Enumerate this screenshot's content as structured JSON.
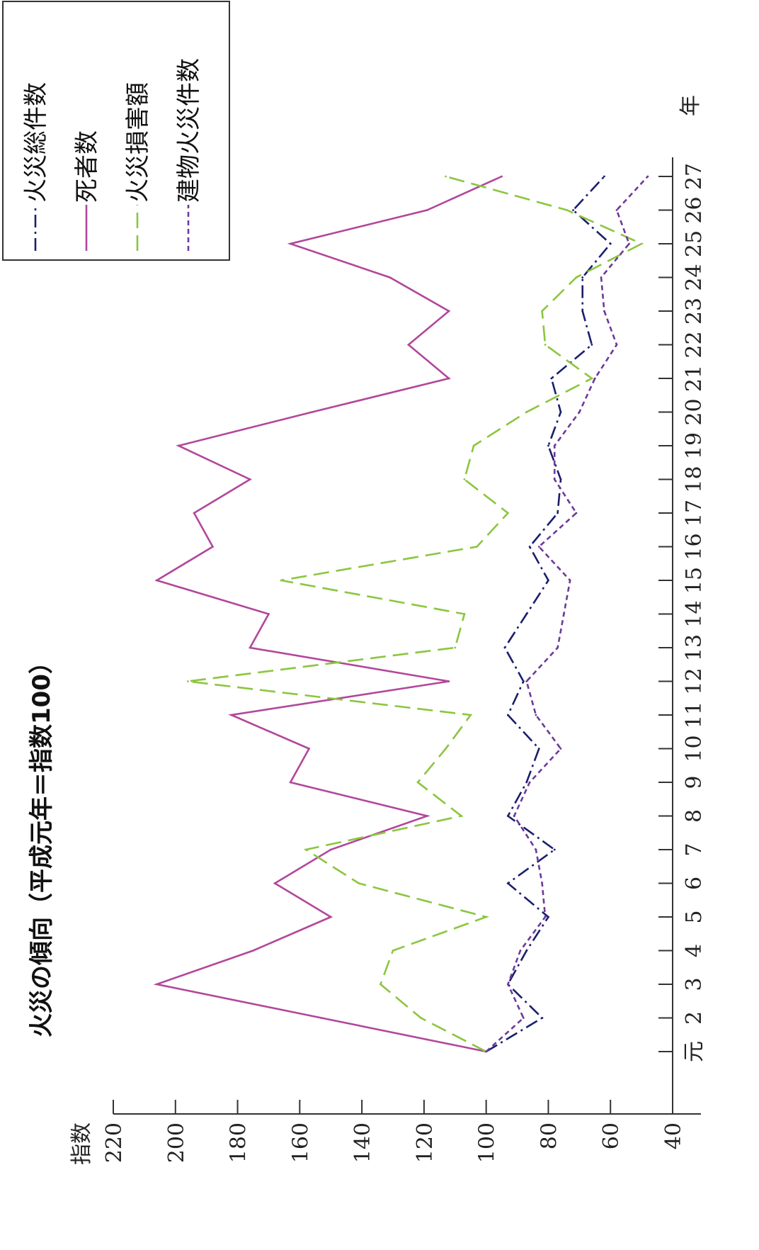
{
  "chart_data": {
    "type": "line",
    "title": "火災の傾向（平成元年＝指数100）",
    "ylabel": "指数",
    "xlabel": "年",
    "ylim": [
      40,
      220
    ],
    "yticks": [
      220,
      200,
      180,
      160,
      140,
      120,
      100,
      80,
      60,
      40
    ],
    "categories": [
      "元",
      "2",
      "3",
      "4",
      "5",
      "6",
      "7",
      "8",
      "9",
      "10",
      "11",
      "12",
      "13",
      "14",
      "15",
      "16",
      "17",
      "18",
      "19",
      "20",
      "21",
      "22",
      "23",
      "24",
      "25",
      "26",
      "27"
    ],
    "legend_position": "top-right",
    "series": [
      {
        "name": "火災総件数",
        "color": "#1a1f6e",
        "dash": "18,6,3,6",
        "values": [
          100,
          82,
          93,
          87,
          80,
          93,
          78,
          93,
          87,
          83,
          93,
          88,
          94,
          87,
          80,
          86,
          77,
          76,
          80,
          76,
          79,
          66,
          69,
          69,
          60,
          72,
          62
        ]
      },
      {
        "name": "死者数",
        "color": "#b2479a",
        "dash": "",
        "values": [
          100,
          153,
          206,
          175,
          150,
          168,
          150,
          119,
          163,
          157,
          182,
          112,
          176,
          170,
          206,
          188,
          194,
          176,
          199,
          156,
          112,
          125,
          112,
          131,
          163,
          119,
          95
        ]
      },
      {
        "name": "火災損害額",
        "color": "#8bc63f",
        "dash": "22,10",
        "values": [
          100,
          121,
          134,
          130,
          100,
          141,
          158,
          108,
          122,
          113,
          105,
          196,
          110,
          107,
          166,
          103,
          93,
          107,
          104,
          87,
          66,
          81,
          82,
          71,
          50,
          74,
          113
        ]
      },
      {
        "name": "建物火災件数",
        "color": "#6c3a9a",
        "dash": "7,5",
        "values": [
          100,
          88,
          93,
          89,
          81,
          82,
          84,
          91,
          86,
          76,
          84,
          87,
          77,
          75,
          73,
          83,
          71,
          78,
          78,
          70,
          65,
          58,
          62,
          63,
          54,
          58,
          48
        ]
      }
    ]
  }
}
